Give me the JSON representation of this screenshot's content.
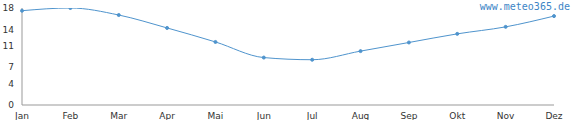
{
  "chart_data": {
    "type": "line",
    "annotations": [
      "www.meteo365.de"
    ],
    "categories": [
      "Jan",
      "Feb",
      "Mar",
      "Apr",
      "Mai",
      "Jun",
      "Jul",
      "Aug",
      "Sep",
      "Okt",
      "Nov",
      "Dez"
    ],
    "values": [
      17.5,
      18,
      16.7,
      14.3,
      11.7,
      8.8,
      8.4,
      10,
      11.6,
      13.2,
      14.5,
      16.5
    ],
    "color": "#4f94cd",
    "ylim": [
      0,
      18
    ],
    "yticks": [
      0,
      4,
      7,
      11,
      14,
      18
    ],
    "grid": false,
    "marker": "circle"
  }
}
